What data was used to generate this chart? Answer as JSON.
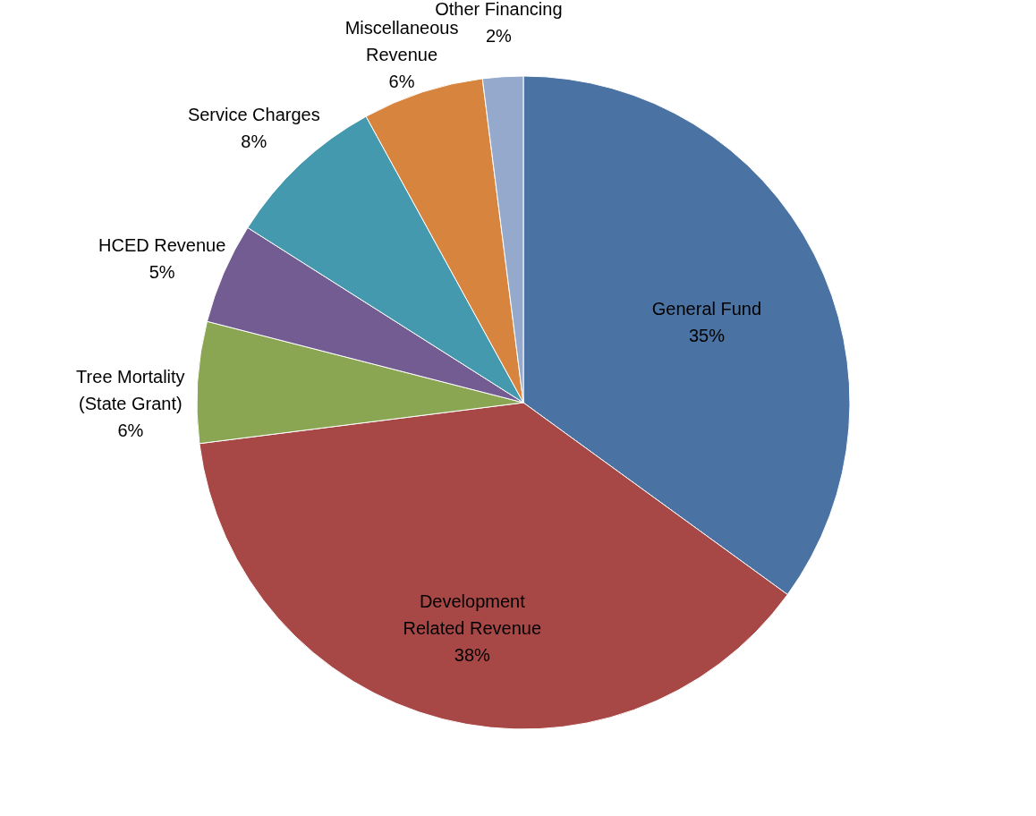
{
  "chart_data": {
    "type": "pie",
    "categories": [
      "General Fund",
      "Development Related Revenue",
      "Tree Mortality (State Grant)",
      "HCED Revenue",
      "Service Charges",
      "Miscellaneous Revenue",
      "Other Financing"
    ],
    "values": [
      35,
      38,
      6,
      5,
      8,
      6,
      2
    ],
    "value_labels": [
      "35%",
      "38%",
      "6%",
      "5%",
      "8%",
      "6%",
      "2%"
    ],
    "colors": [
      "#4a72a3",
      "#a84846",
      "#8aa653",
      "#725c91",
      "#4599ae",
      "#d7843f",
      "#95a9cc"
    ]
  }
}
